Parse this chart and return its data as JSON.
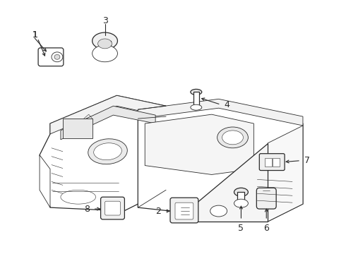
{
  "background_color": "#ffffff",
  "line_color": "#2a2a2a",
  "label_fontsize": 9,
  "lw_main": 0.9,
  "lw_detail": 0.6,
  "lw_thin": 0.4
}
